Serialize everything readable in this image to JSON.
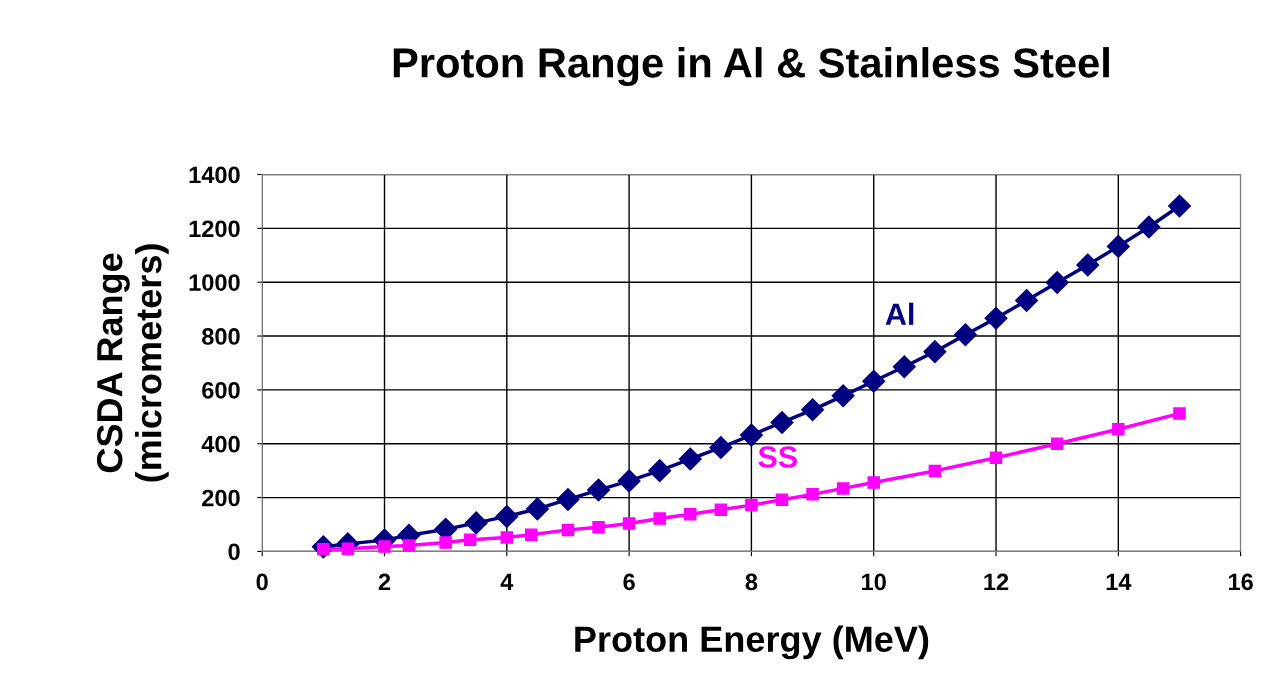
{
  "chart_data": {
    "type": "line",
    "title": "Proton Range in Al & Stainless Steel",
    "xlabel": "Proton Energy (MeV)",
    "ylabel": "CSDA Range\n(micrometers)",
    "xlim": [
      0,
      16
    ],
    "xticks": [
      0,
      2,
      4,
      6,
      8,
      10,
      12,
      14,
      16
    ],
    "ylim": [
      0,
      1400
    ],
    "yticks": [
      0,
      200,
      400,
      600,
      800,
      1000,
      1200,
      1400
    ],
    "grid": true,
    "legend": false,
    "line_style": "solid",
    "series": [
      {
        "name": "Al",
        "color": "#000080",
        "marker": "diamond",
        "x": [
          1,
          1.4,
          2,
          2.4,
          3,
          3.5,
          4,
          4.5,
          5,
          5.5,
          6,
          6.5,
          7,
          7.5,
          8,
          8.5,
          9,
          9.5,
          10,
          10.5,
          11,
          11.5,
          12,
          12.5,
          13,
          13.5,
          14,
          14.5,
          15
        ],
        "values": [
          17,
          28,
          42,
          60,
          82,
          106,
          130,
          158,
          193,
          228,
          262,
          300,
          343,
          386,
          432,
          479,
          526,
          578,
          632,
          686,
          742,
          805,
          866,
          932,
          999,
          1064,
          1133,
          1205,
          1283
        ]
      },
      {
        "name": "SS",
        "color": "#ff00ff",
        "marker": "square",
        "x": [
          1,
          1.4,
          2,
          2.4,
          3,
          3.4,
          4,
          4.4,
          5,
          5.5,
          6,
          6.5,
          7,
          7.5,
          8,
          8.5,
          9,
          9.5,
          10,
          11,
          12,
          13,
          14,
          15
        ],
        "values": [
          8,
          10,
          18,
          22,
          33,
          43,
          52,
          62,
          80,
          90,
          104,
          122,
          138,
          155,
          172,
          192,
          212,
          234,
          256,
          299,
          348,
          400,
          454,
          512
        ]
      }
    ]
  }
}
